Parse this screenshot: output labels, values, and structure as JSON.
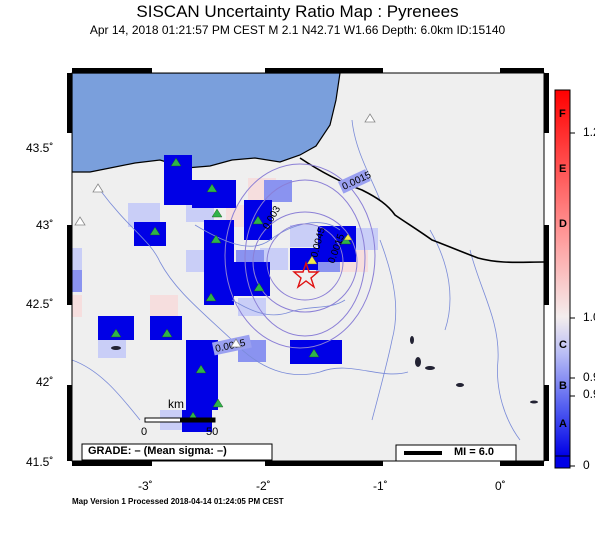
{
  "header": {
    "title": "SISCAN Uncertainty Ratio Map : Pyrenees",
    "subtitle": "Apr 14, 2018 01:21:57 PM CEST   M 2.1   N42.71 W1.66   Depth: 6.0km   ID:15140"
  },
  "map": {
    "lat_ticks": [
      "43.5˚",
      "43˚",
      "42.5˚",
      "42˚",
      "41.5˚"
    ],
    "lon_ticks": [
      "-3˚",
      "-2˚",
      "-1˚",
      "0˚"
    ],
    "contour_labels": [
      "0.0015",
      "0.003",
      "0.0045",
      "0.0015",
      "0.0015"
    ],
    "scale_bar": {
      "unit": "km",
      "start": "0",
      "end": "50"
    },
    "grade_text": "GRADE: – (Mean sigma: –)",
    "mi_legend": "MI = 6.0",
    "epicenter": {
      "lat": 42.71,
      "lon": -1.66
    }
  },
  "colorbar": {
    "tick_values": [
      "1.2",
      "1.0",
      "0.9",
      "0.9",
      "0"
    ],
    "letters": [
      "F",
      "E",
      "D",
      "C",
      "B",
      "A"
    ]
  },
  "footer": {
    "text": "Map Version 1 Processed 2018-04-14 01:24:05 PM CEST"
  },
  "colors": {
    "sea": "#7a9fdc",
    "land": "#efefef",
    "deep_blue": "#0000e6",
    "station_green": "#2fb34a",
    "epicenter": "#e01010"
  }
}
